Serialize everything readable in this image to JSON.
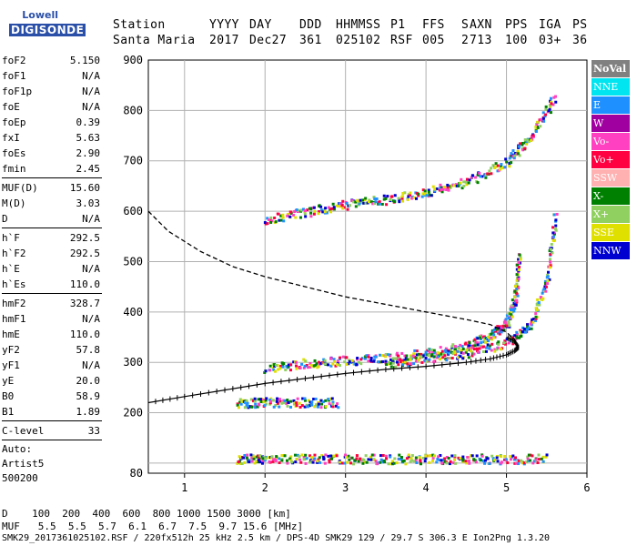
{
  "logo": {
    "line1": "Lowell",
    "line2": "DIGISONDE"
  },
  "header": {
    "labels": [
      "Station",
      "YYYY",
      "DAY",
      "DDD",
      "HHMMSS",
      "P1",
      "FFS",
      "S",
      "AXN",
      "PPS",
      "IGA",
      "PS"
    ],
    "values": [
      "Santa Maria",
      "2017",
      "Dec27",
      "361",
      "025102",
      "RSF",
      "005",
      "2",
      "713",
      "100",
      "03+",
      "36"
    ]
  },
  "params": {
    "group1": [
      {
        "k": "foF2",
        "v": "5.150"
      },
      {
        "k": "foF1",
        "v": "N/A"
      },
      {
        "k": "foF1p",
        "v": "N/A"
      },
      {
        "k": "foE",
        "v": "N/A"
      },
      {
        "k": "foEp",
        "v": "0.39"
      },
      {
        "k": "fxI",
        "v": "5.63"
      },
      {
        "k": "foEs",
        "v": "2.90"
      },
      {
        "k": "fmin",
        "v": "2.45"
      }
    ],
    "group2": [
      {
        "k": "MUF(D)",
        "v": "15.60"
      },
      {
        "k": "M(D)",
        "v": "3.03"
      },
      {
        "k": "D",
        "v": "N/A"
      }
    ],
    "group3": [
      {
        "k": "h`F",
        "v": "292.5"
      },
      {
        "k": "h`F2",
        "v": "292.5"
      },
      {
        "k": "h`E",
        "v": "N/A"
      },
      {
        "k": "h`Es",
        "v": "110.0"
      }
    ],
    "group4": [
      {
        "k": "hmF2",
        "v": "328.7"
      },
      {
        "k": "hmF1",
        "v": "N/A"
      },
      {
        "k": "hmE",
        "v": "110.0"
      },
      {
        "k": "yF2",
        "v": "57.8"
      },
      {
        "k": "yF1",
        "v": "N/A"
      },
      {
        "k": "yE",
        "v": "20.0"
      },
      {
        "k": "B0",
        "v": "58.9"
      },
      {
        "k": "B1",
        "v": "1.89"
      }
    ],
    "clevel": {
      "k": "C-level",
      "v": "33"
    },
    "auto": [
      "Auto:",
      "Artist5",
      "500200"
    ]
  },
  "legend": [
    {
      "label": "NoVal",
      "color": "#808080"
    },
    {
      "label": "NNE",
      "color": "#00e5f0"
    },
    {
      "label": "E",
      "color": "#1e90ff"
    },
    {
      "label": "W",
      "color": "#a000a0"
    },
    {
      "label": "Vo-",
      "color": "#ff40c0"
    },
    {
      "label": "Vo+",
      "color": "#ff0040"
    },
    {
      "label": "SSW",
      "color": "#ffb0b0"
    },
    {
      "label": "X-",
      "color": "#008000"
    },
    {
      "label": "X+",
      "color": "#90d060"
    },
    {
      "label": "SSE",
      "color": "#e0e000"
    },
    {
      "label": "NNW",
      "color": "#0000d0"
    }
  ],
  "footer": {
    "d_line": "D    100  200  400  600  800 1000 1500 3000 [km]",
    "muf_line": "MUF   5.5  5.5  5.7  6.1  6.7  7.5  9.7 15.6 [MHz]",
    "info_line": "SMK29_2017361025102.RSF / 220fx512h 25 kHz 2.5 km / DPS-4D SMK29 129 / 29.7 S 306.3 E Ion2Png 1.3.20"
  },
  "chart_data": {
    "type": "scatter",
    "xlim": [
      0.55,
      6
    ],
    "ylim": [
      80,
      900
    ],
    "xticks": [
      1,
      2,
      3,
      4,
      5,
      6
    ],
    "yticks": [
      80,
      200,
      300,
      400,
      500,
      600,
      700,
      800,
      900
    ],
    "grid": true,
    "legend_position": "right",
    "traces": [
      {
        "name": "F2 trace",
        "x": [
          2.0,
          2.5,
          3.0,
          3.5,
          4.0,
          4.5,
          4.8,
          5.0,
          5.1,
          5.15
        ],
        "y": [
          290,
          300,
          305,
          310,
          320,
          335,
          355,
          380,
          430,
          520
        ]
      },
      {
        "name": "F2 X trace",
        "x": [
          3.5,
          4.0,
          4.5,
          5.0,
          5.3,
          5.5,
          5.6
        ],
        "y": [
          300,
          310,
          320,
          340,
          380,
          470,
          600
        ]
      },
      {
        "name": "2F trace",
        "x": [
          2.0,
          2.5,
          3.0,
          3.5,
          4.0,
          4.5,
          5.0,
          5.3,
          5.6
        ],
        "y": [
          585,
          600,
          615,
          625,
          640,
          660,
          700,
          750,
          830
        ]
      },
      {
        "name": "Es trace",
        "x": [
          1.65,
          2.0,
          2.5,
          3.0,
          3.5,
          4.0,
          4.5,
          5.0,
          5.5
        ],
        "y": [
          110,
          110,
          110,
          110,
          110,
          110,
          110,
          110,
          110
        ]
      },
      {
        "name": "2Es trace",
        "x": [
          1.65,
          2.0,
          2.5,
          2.9
        ],
        "y": [
          222,
          222,
          222,
          222
        ]
      }
    ],
    "profile_curve": {
      "x": [
        0.55,
        0.8,
        1.2,
        1.6,
        2.0,
        2.5,
        3.0,
        3.5,
        4.0,
        4.5,
        4.8,
        5.0,
        5.1,
        5.15
      ],
      "y": [
        600,
        560,
        520,
        490,
        470,
        450,
        430,
        415,
        400,
        385,
        375,
        360,
        345,
        330
      ]
    },
    "virtual_height_curve": {
      "x": [
        0.55,
        1.0,
        1.5,
        2.0,
        2.5,
        3.0,
        3.5,
        4.0,
        4.5,
        4.8,
        5.0,
        5.1,
        5.15,
        5.1,
        5.0
      ],
      "y": [
        220,
        232,
        245,
        258,
        268,
        278,
        286,
        292,
        300,
        307,
        315,
        323,
        330,
        342,
        350
      ]
    }
  }
}
